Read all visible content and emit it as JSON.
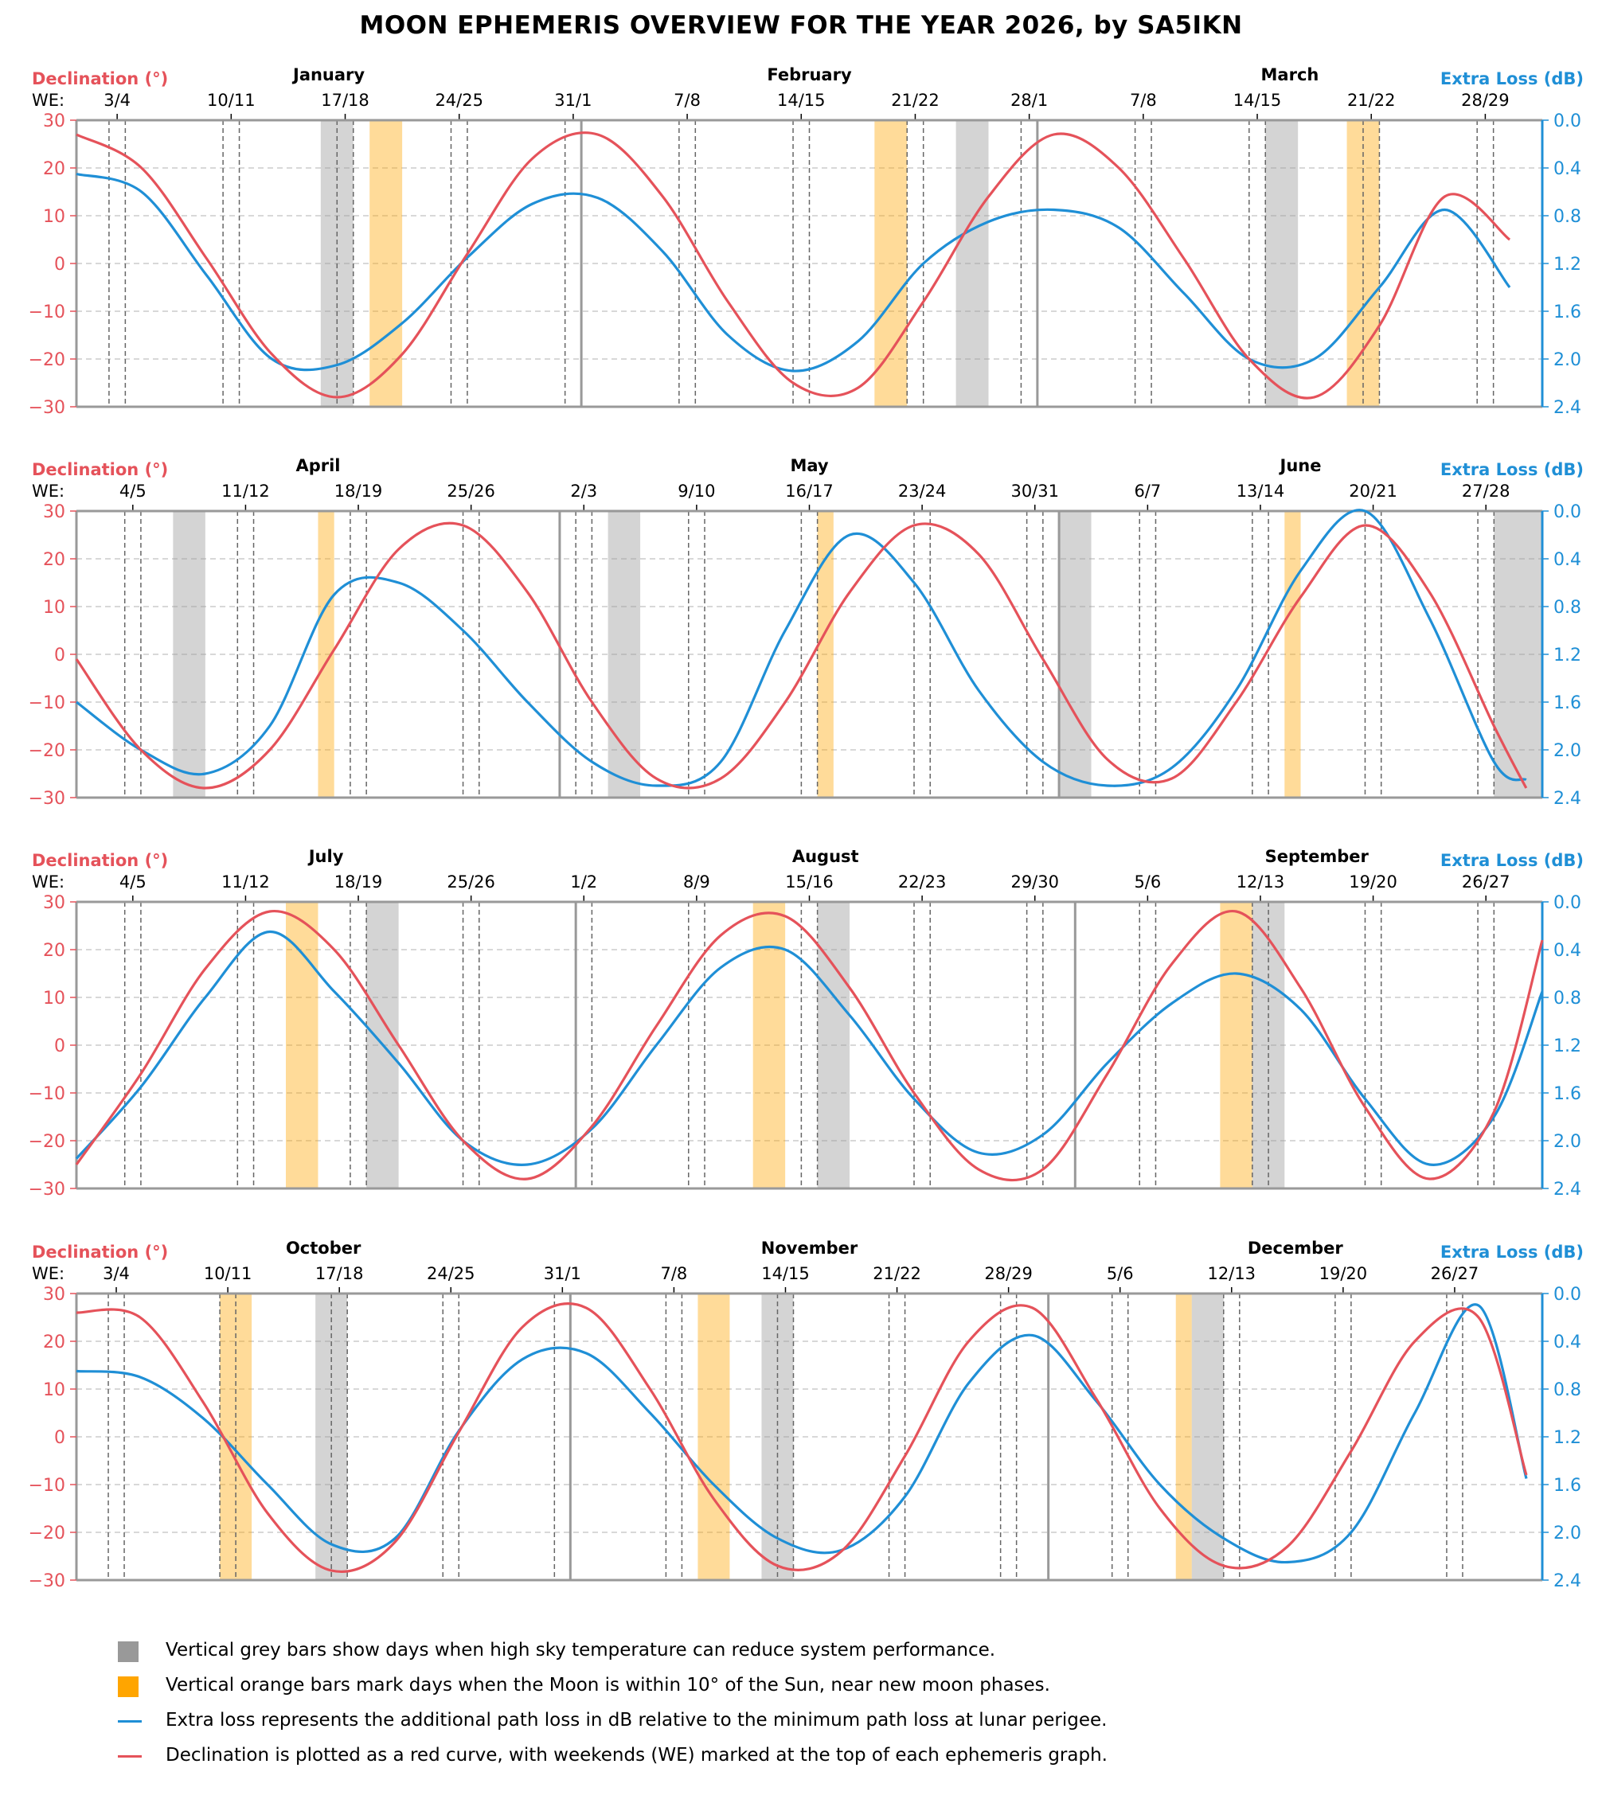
{
  "title": "MOON EPHEMERIS OVERVIEW FOR THE YEAR 2026, by SA5IKN",
  "colors": {
    "declination": "#e5525a",
    "extra_loss": "#1f8fd6",
    "grey_bar": "#999999",
    "orange_bar": "#ffa500",
    "grid": "#cccccc",
    "frame": "#999999"
  },
  "axis_labels": {
    "left": "Declination (°)",
    "right": "Extra Loss (dB)",
    "we": "WE:"
  },
  "legend": [
    {
      "type": "grey-square",
      "text": "Vertical grey bars show days when high sky temperature can reduce system performance."
    },
    {
      "type": "orange-square",
      "text": "Vertical orange bars mark days when the Moon is within 10° of the Sun, near new moon phases."
    },
    {
      "type": "blue-line",
      "text": "Extra loss represents the additional path loss in dB relative to the minimum path loss at lunar perigee."
    },
    {
      "type": "red-line",
      "text": "Declination is plotted as a red curve, with weekends (WE) marked at the top of each ephemeris graph."
    }
  ],
  "chart_data": [
    {
      "type": "line",
      "title": "",
      "year": 2026,
      "months": [
        "January",
        "February",
        "March"
      ],
      "x": [
        1,
        5,
        9,
        13,
        17,
        21,
        25,
        29,
        33,
        37,
        41,
        45,
        49,
        53,
        57,
        61,
        65,
        69,
        73,
        77,
        81,
        85,
        89
      ],
      "x_range": [
        1,
        91
      ],
      "xlabel": "",
      "y_left_label": "Declination (°)",
      "y_left_lim": [
        -30,
        30
      ],
      "y_left_ticks": [
        -30,
        -20,
        -10,
        0,
        10,
        20,
        30
      ],
      "y_right_label": "Extra Loss (dB)",
      "y_right_lim": [
        2.4,
        0.0
      ],
      "y_right_ticks": [
        "0.0",
        "0.4",
        "0.8",
        "1.2",
        "1.6",
        "2.0",
        "2.4"
      ],
      "series": [
        {
          "values": [
            27,
            20,
            1,
            -19,
            -28,
            -19,
            2,
            22,
            27,
            14,
            -8,
            -25,
            -26,
            -8,
            14,
            27,
            20,
            1,
            -20,
            -28,
            -13,
            14,
            5
          ]
        },
        {
          "values": [
            0.45,
            0.6,
            1.3,
            2.0,
            2.05,
            1.7,
            1.15,
            0.7,
            0.65,
            1.1,
            1.8,
            2.1,
            1.85,
            1.2,
            0.85,
            0.75,
            0.9,
            1.45,
            2.0,
            2.0,
            1.4,
            0.75,
            1.4
          ]
        }
      ],
      "weekends": [
        "3/4",
        "10/11",
        "17/18",
        "24/25",
        "31/1",
        "7/8",
        "14/15",
        "21/22",
        "28/1",
        "7/8",
        "14/15",
        "21/22",
        "28/29"
      ],
      "grey_bars": [
        [
          16,
          18
        ],
        [
          55,
          57
        ],
        [
          74,
          76
        ]
      ],
      "orange_bars": [
        [
          19,
          21
        ],
        [
          50,
          52
        ],
        [
          79,
          81
        ]
      ]
    },
    {
      "type": "line",
      "title": "",
      "year": 2026,
      "months": [
        "April",
        "May",
        "June"
      ],
      "x": [
        91,
        95,
        99,
        103,
        107,
        111,
        115,
        119,
        123,
        127,
        131,
        135,
        139,
        143,
        147,
        151,
        155,
        159,
        163,
        167,
        171,
        175,
        179,
        181
      ],
      "x_range": [
        91,
        182
      ],
      "xlabel": "",
      "y_left_label": "Declination (°)",
      "y_left_lim": [
        -30,
        30
      ],
      "y_left_ticks": [
        -30,
        -20,
        -10,
        0,
        10,
        20,
        30
      ],
      "y_right_label": "Extra Loss (dB)",
      "y_right_lim": [
        2.4,
        0.0
      ],
      "y_right_ticks": [
        "0.0",
        "0.4",
        "0.8",
        "1.2",
        "1.6",
        "2.0",
        "2.4"
      ],
      "series": [
        {
          "values": [
            -1,
            -20,
            -28,
            -20,
            1,
            22,
            27,
            13,
            -10,
            -26,
            -26,
            -10,
            13,
            27,
            21,
            -1,
            -22,
            -26,
            -10,
            12,
            27,
            13,
            -15,
            -28
          ]
        },
        {
          "values": [
            1.6,
            2.0,
            2.2,
            1.8,
            0.7,
            0.6,
            1.0,
            1.6,
            2.1,
            2.3,
            2.1,
            1.0,
            0.2,
            0.6,
            1.5,
            2.1,
            2.3,
            2.15,
            1.5,
            0.5,
            0.0,
            0.9,
            2.1,
            2.25
          ]
        }
      ],
      "weekends": [
        "4/5",
        "11/12",
        "18/19",
        "25/26",
        "2/3",
        "9/10",
        "16/17",
        "23/24",
        "30/31",
        "6/7",
        "13/14",
        "20/21",
        "27/28"
      ],
      "grey_bars": [
        [
          97,
          99
        ],
        [
          124,
          126
        ],
        [
          152,
          154
        ],
        [
          179,
          182
        ]
      ],
      "orange_bars": [
        [
          106,
          107
        ],
        [
          137,
          138
        ],
        [
          166,
          167
        ]
      ]
    },
    {
      "type": "line",
      "title": "",
      "year": 2026,
      "months": [
        "July",
        "August",
        "September"
      ],
      "x": [
        182,
        186,
        190,
        194,
        198,
        202,
        206,
        210,
        214,
        218,
        222,
        226,
        230,
        234,
        238,
        242,
        246,
        250,
        254,
        258,
        262,
        266,
        270,
        273
      ],
      "x_range": [
        182,
        273
      ],
      "xlabel": "",
      "y_left_label": "Declination (°)",
      "y_left_lim": [
        -30,
        30
      ],
      "y_left_ticks": [
        -30,
        -20,
        -10,
        0,
        10,
        20,
        30
      ],
      "y_right_label": "Extra Loss (dB)",
      "y_right_lim": [
        2.4,
        0.0
      ],
      "y_right_ticks": [
        "0.0",
        "0.4",
        "0.8",
        "1.2",
        "1.6",
        "2.0",
        "2.4"
      ],
      "series": [
        {
          "values": [
            -25,
            -6,
            16,
            28,
            20,
            0,
            -20,
            -28,
            -17,
            4,
            23,
            27,
            12,
            -10,
            -26,
            -26,
            -6,
            17,
            28,
            12,
            -13,
            -28,
            -14,
            22
          ]
        },
        {
          "values": [
            2.15,
            1.55,
            0.8,
            0.25,
            0.75,
            1.35,
            2.0,
            2.2,
            1.9,
            1.2,
            0.55,
            0.4,
            0.95,
            1.65,
            2.1,
            1.95,
            1.35,
            0.85,
            0.6,
            0.9,
            1.65,
            2.2,
            1.8,
            0.75
          ]
        }
      ],
      "weekends": [
        "4/5",
        "11/12",
        "18/19",
        "25/26",
        "1/2",
        "8/9",
        "15/16",
        "22/23",
        "29/30",
        "5/6",
        "12/13",
        "19/20",
        "26/27"
      ],
      "grey_bars": [
        [
          200,
          202
        ],
        [
          228,
          230
        ],
        [
          255,
          257
        ]
      ],
      "orange_bars": [
        [
          195,
          197
        ],
        [
          224,
          226
        ],
        [
          253,
          255
        ]
      ]
    },
    {
      "type": "line",
      "title": "",
      "year": 2026,
      "months": [
        "October",
        "November",
        "December"
      ],
      "x": [
        274,
        278,
        282,
        286,
        290,
        294,
        298,
        302,
        306,
        310,
        314,
        318,
        322,
        326,
        330,
        334,
        338,
        342,
        346,
        350,
        354,
        358,
        362,
        365
      ],
      "x_range": [
        274,
        366
      ],
      "xlabel": "",
      "y_left_label": "Declination (°)",
      "y_left_lim": [
        -30,
        30
      ],
      "y_left_ticks": [
        -30,
        -20,
        -10,
        0,
        10,
        20,
        30
      ],
      "y_right_label": "Extra Loss (dB)",
      "y_right_lim": [
        2.4,
        0.0
      ],
      "y_right_ticks": [
        "0.0",
        "0.4",
        "0.8",
        "1.2",
        "1.6",
        "2.0",
        "2.4"
      ],
      "series": [
        {
          "values": [
            26,
            25,
            7,
            -16,
            -28,
            -22,
            1,
            23,
            27,
            10,
            -13,
            -27,
            -24,
            -4,
            20,
            27,
            8,
            -15,
            -27,
            -23,
            -3,
            20,
            25,
            -8
          ]
        },
        {
          "values": [
            0.65,
            0.7,
            1.05,
            1.6,
            2.1,
            2.05,
            1.15,
            0.55,
            0.5,
            1.0,
            1.6,
            2.05,
            2.15,
            1.7,
            0.75,
            0.35,
            0.9,
            1.6,
            2.05,
            2.25,
            2.0,
            1.0,
            0.1,
            1.55
          ]
        }
      ],
      "weekends": [
        "3/4",
        "10/11",
        "17/18",
        "24/25",
        "31/1",
        "7/8",
        "14/15",
        "21/22",
        "28/29",
        "5/6",
        "12/13",
        "19/20",
        "26/27"
      ],
      "grey_bars": [
        [
          289,
          291
        ],
        [
          317,
          319
        ],
        [
          344,
          346
        ]
      ],
      "orange_bars": [
        [
          283,
          285
        ],
        [
          313,
          315
        ],
        [
          343,
          344
        ]
      ]
    }
  ]
}
